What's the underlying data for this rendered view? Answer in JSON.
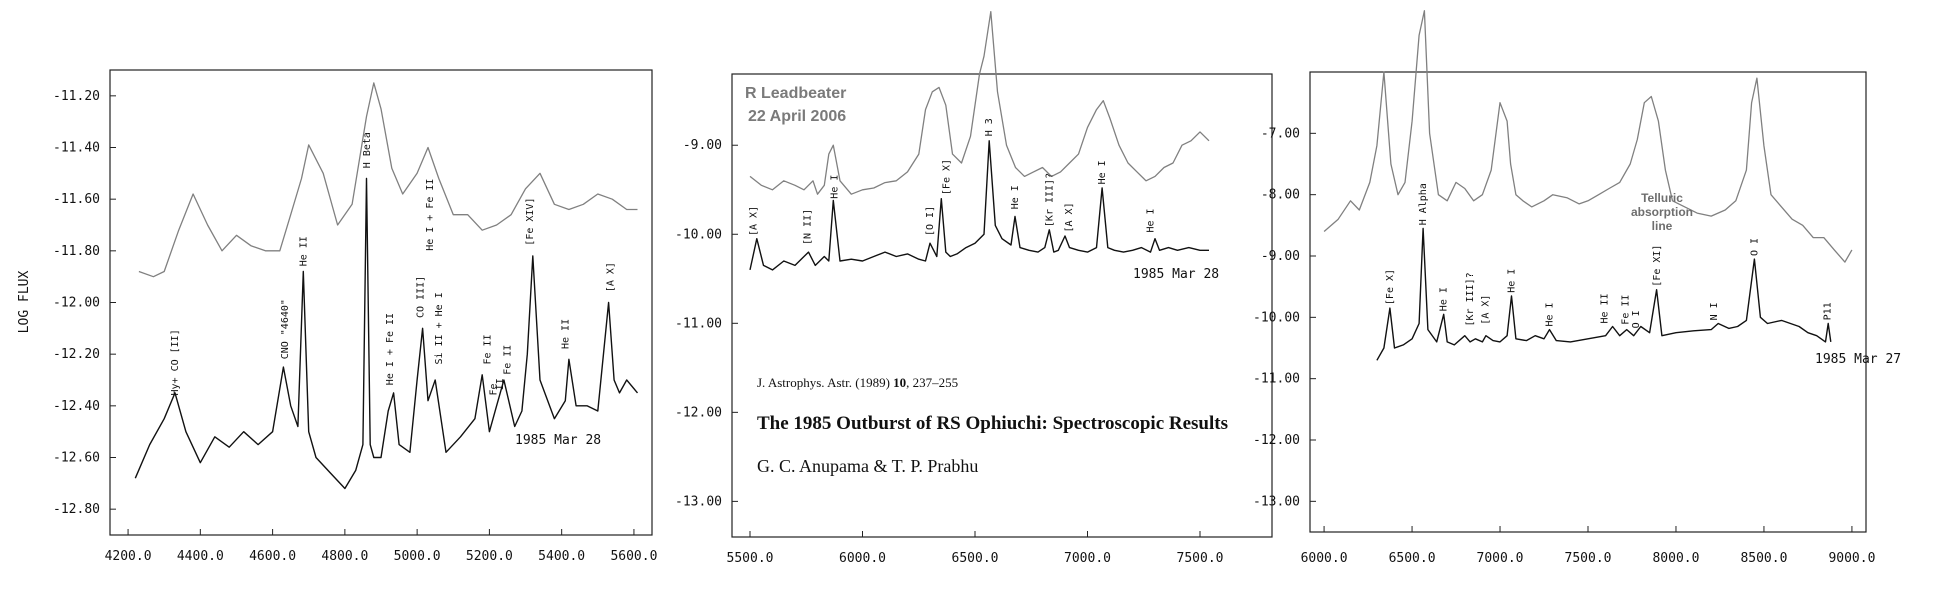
{
  "credit": {
    "author": "R Leadbeater",
    "date": "22 April 2006"
  },
  "citation": {
    "journal": "J. Astrophys. Astr. (1989) ",
    "volume": "10",
    "pages": ", 237–255"
  },
  "paper_title": "The 1985 Outburst of RS Ophiuchi: Spectroscopic Results",
  "paper_authors": "G. C. Anupama & T. P. Prabhu",
  "telluric_label": [
    "Telluric",
    "absorption",
    "line"
  ],
  "colors": {
    "old_spectrum": "#111111",
    "new_spectrum": "#808080",
    "frame": "#222222"
  },
  "chart_data": [
    {
      "type": "line",
      "panel": "left",
      "xlabel": "",
      "ylabel": "LOG FLUX",
      "xlim": [
        4150,
        5650
      ],
      "ylim": [
        -12.9,
        -11.1
      ],
      "x_ticks": [
        "4200.0",
        "4400.0",
        "4600.0",
        "4800.0",
        "5000.0",
        "5200.0",
        "5400.0",
        "5600.0"
      ],
      "x_tick_values": [
        4200,
        4400,
        4600,
        4800,
        5000,
        5200,
        5400,
        5600
      ],
      "y_ticks": [
        "-11.20",
        "-11.40",
        "-11.60",
        "-11.80",
        "-12.00",
        "-12.20",
        "-12.40",
        "-12.60",
        "-12.80"
      ],
      "y_tick_values": [
        -11.2,
        -11.4,
        -11.6,
        -11.8,
        -12.0,
        -12.2,
        -12.4,
        -12.6,
        -12.8
      ],
      "date_label": "1985 Mar 28",
      "series": [
        {
          "role": "old_spectrum",
          "x": [
            4220,
            4260,
            4300,
            4330,
            4360,
            4400,
            4440,
            4480,
            4520,
            4560,
            4600,
            4630,
            4650,
            4670,
            4685,
            4700,
            4720,
            4760,
            4800,
            4830,
            4850,
            4860,
            4870,
            4880,
            4900,
            4920,
            4935,
            4950,
            4980,
            5000,
            5015,
            5030,
            5050,
            5080,
            5120,
            5160,
            5180,
            5200,
            5220,
            5240,
            5270,
            5290,
            5305,
            5320,
            5340,
            5380,
            5410,
            5420,
            5440,
            5470,
            5500,
            5530,
            5545,
            5560,
            5580,
            5610
          ],
          "y": [
            -12.68,
            -12.55,
            -12.45,
            -12.35,
            -12.5,
            -12.62,
            -12.52,
            -12.56,
            -12.5,
            -12.55,
            -12.5,
            -12.25,
            -12.4,
            -12.48,
            -11.88,
            -12.5,
            -12.6,
            -12.66,
            -12.72,
            -12.65,
            -12.55,
            -11.52,
            -12.55,
            -12.6,
            -12.6,
            -12.42,
            -12.35,
            -12.55,
            -12.58,
            -12.3,
            -12.1,
            -12.38,
            -12.3,
            -12.58,
            -12.52,
            -12.45,
            -12.28,
            -12.5,
            -12.4,
            -12.3,
            -12.48,
            -12.42,
            -12.2,
            -11.82,
            -12.3,
            -12.45,
            -12.38,
            -12.22,
            -12.4,
            -12.4,
            -12.42,
            -12.0,
            -12.3,
            -12.35,
            -12.3,
            -12.35
          ]
        },
        {
          "role": "new_spectrum",
          "x": [
            4230,
            4270,
            4300,
            4340,
            4380,
            4420,
            4460,
            4500,
            4540,
            4580,
            4620,
            4650,
            4680,
            4700,
            4740,
            4780,
            4820,
            4860,
            4880,
            4900,
            4930,
            4960,
            5000,
            5030,
            5060,
            5100,
            5140,
            5180,
            5220,
            5260,
            5300,
            5340,
            5380,
            5420,
            5460,
            5500,
            5540,
            5580,
            5610
          ],
          "y": [
            -11.88,
            -11.9,
            -11.88,
            -11.72,
            -11.58,
            -11.7,
            -11.8,
            -11.74,
            -11.78,
            -11.8,
            -11.8,
            -11.66,
            -11.52,
            -11.39,
            -11.5,
            -11.7,
            -11.62,
            -11.28,
            -11.15,
            -11.25,
            -11.48,
            -11.58,
            -11.5,
            -11.4,
            -11.52,
            -11.66,
            -11.66,
            -11.72,
            -11.7,
            -11.66,
            -11.56,
            -11.5,
            -11.62,
            -11.64,
            -11.62,
            -11.58,
            -11.6,
            -11.64,
            -11.64
          ]
        }
      ],
      "line_labels": [
        {
          "text": "Hy+ CO [II]",
          "x": 4330,
          "y": -12.36
        },
        {
          "text": "CNO \"4640\"",
          "x": 4635,
          "y": -12.22
        },
        {
          "text": "He II",
          "x": 4686,
          "y": -11.86
        },
        {
          "text": "H Beta",
          "x": 4861,
          "y": -11.48
        },
        {
          "text": "He I + Fe II",
          "x": 4925,
          "y": -12.32
        },
        {
          "text": "CO III]",
          "x": 5010,
          "y": -12.06
        },
        {
          "text": "He I + Fe II",
          "x": 5035,
          "y": -11.8
        },
        {
          "text": "Si II + He I",
          "x": 5060,
          "y": -12.24
        },
        {
          "text": "Fe II",
          "x": 5195,
          "y": -12.24
        },
        {
          "text": "Fe",
          "x": 5212,
          "y": -12.36
        },
        {
          "text": "II",
          "x": 5230,
          "y": -12.34
        },
        {
          "text": "Fe II",
          "x": 5250,
          "y": -12.28
        },
        {
          "text": "[Fe XIV]",
          "x": 5313,
          "y": -11.78
        },
        {
          "text": "He II",
          "x": 5411,
          "y": -12.18
        },
        {
          "text": "[A X]",
          "x": 5535,
          "y": -11.96
        }
      ]
    },
    {
      "type": "line",
      "panel": "middle",
      "xlabel": "",
      "ylabel": "",
      "xlim": [
        5420,
        7820
      ],
      "ylim": [
        -13.4,
        -8.2
      ],
      "x_ticks": [
        "5500.0",
        "6000.0",
        "6500.0",
        "7000.0",
        "7500.0"
      ],
      "x_tick_values": [
        5500,
        6000,
        6500,
        7000,
        7500
      ],
      "y_ticks": [
        "-9.00",
        "-10.00",
        "-11.00",
        "-12.00",
        "-13.00"
      ],
      "y_tick_values": [
        -9,
        -10,
        -11,
        -12,
        -13
      ],
      "date_label": "1985 Mar 28",
      "series": [
        {
          "role": "old_spectrum",
          "x": [
            5500,
            5530,
            5560,
            5600,
            5650,
            5700,
            5740,
            5760,
            5790,
            5830,
            5850,
            5870,
            5900,
            5950,
            6000,
            6050,
            6100,
            6150,
            6200,
            6250,
            6280,
            6300,
            6330,
            6350,
            6370,
            6390,
            6420,
            6460,
            6500,
            6540,
            6563,
            6590,
            6620,
            6660,
            6678,
            6700,
            6740,
            6780,
            6810,
            6830,
            6850,
            6870,
            6900,
            6920,
            6960,
            7000,
            7040,
            7065,
            7090,
            7120,
            7160,
            7200,
            7240,
            7280,
            7300,
            7320,
            7360,
            7400,
            7450,
            7500,
            7540
          ],
          "y": [
            -10.4,
            -10.05,
            -10.35,
            -10.4,
            -10.3,
            -10.35,
            -10.25,
            -10.2,
            -10.35,
            -10.25,
            -10.3,
            -9.62,
            -10.3,
            -10.28,
            -10.3,
            -10.25,
            -10.2,
            -10.25,
            -10.22,
            -10.28,
            -10.3,
            -10.1,
            -10.25,
            -9.6,
            -10.2,
            -10.25,
            -10.22,
            -10.15,
            -10.1,
            -10.0,
            -8.95,
            -9.9,
            -10.05,
            -10.12,
            -9.8,
            -10.15,
            -10.18,
            -10.2,
            -10.15,
            -9.95,
            -10.2,
            -10.18,
            -10.02,
            -10.15,
            -10.18,
            -10.2,
            -10.15,
            -9.48,
            -10.15,
            -10.18,
            -10.2,
            -10.18,
            -10.15,
            -10.2,
            -10.05,
            -10.18,
            -10.15,
            -10.18,
            -10.15,
            -10.18,
            -10.18
          ]
        },
        {
          "role": "new_spectrum",
          "x": [
            5500,
            5550,
            5600,
            5650,
            5700,
            5740,
            5780,
            5800,
            5830,
            5850,
            5870,
            5900,
            5950,
            6000,
            6050,
            6100,
            6150,
            6200,
            6250,
            6280,
            6310,
            6340,
            6370,
            6400,
            6440,
            6480,
            6520,
            6540,
            6570,
            6600,
            6640,
            6680,
            6720,
            6760,
            6800,
            6840,
            6880,
            6920,
            6960,
            7000,
            7040,
            7070,
            7100,
            7140,
            7180,
            7220,
            7260,
            7300,
            7340,
            7380,
            7420,
            7460,
            7500,
            7540
          ],
          "y": [
            -9.35,
            -9.45,
            -9.5,
            -9.4,
            -9.45,
            -9.5,
            -9.4,
            -9.55,
            -9.45,
            -9.1,
            -9.0,
            -9.4,
            -9.55,
            -9.5,
            -9.48,
            -9.42,
            -9.4,
            -9.3,
            -9.1,
            -8.6,
            -8.4,
            -8.35,
            -8.55,
            -9.1,
            -9.2,
            -8.9,
            -8.2,
            -8.0,
            -7.5,
            -8.4,
            -9.0,
            -9.25,
            -9.35,
            -9.3,
            -9.25,
            -9.35,
            -9.3,
            -9.2,
            -9.1,
            -8.8,
            -8.6,
            -8.5,
            -8.7,
            -9.0,
            -9.2,
            -9.3,
            -9.4,
            -9.35,
            -9.25,
            -9.2,
            -9.0,
            -8.95,
            -8.85,
            -8.95
          ]
        }
      ],
      "line_labels": [
        {
          "text": "[A X]",
          "x": 5515,
          "y": -10.02
        },
        {
          "text": "[N II]",
          "x": 5755,
          "y": -10.12
        },
        {
          "text": "He I",
          "x": 5876,
          "y": -9.6
        },
        {
          "text": "[O I]",
          "x": 6300,
          "y": -10.02
        },
        {
          "text": "[Fe X]",
          "x": 6374,
          "y": -9.56
        },
        {
          "text": "H 3",
          "x": 6563,
          "y": -8.9
        },
        {
          "text": "He I",
          "x": 6678,
          "y": -9.72
        },
        {
          "text": "[Kr III]?",
          "x": 6830,
          "y": -9.92
        },
        {
          "text": "[A X]",
          "x": 6918,
          "y": -9.98
        },
        {
          "text": "He I",
          "x": 7065,
          "y": -9.44
        },
        {
          "text": "He I",
          "x": 7281,
          "y": -9.98
        }
      ]
    },
    {
      "type": "line",
      "panel": "right",
      "xlabel": "",
      "ylabel": "",
      "xlim": [
        5920,
        9080
      ],
      "ylim": [
        -13.5,
        -6.0
      ],
      "x_ticks": [
        "6000.0",
        "6500.0",
        "7000.0",
        "7500.0",
        "8000.0",
        "8500.0",
        "9000.0"
      ],
      "x_tick_values": [
        6000,
        6500,
        7000,
        7500,
        8000,
        8500,
        9000
      ],
      "y_ticks": [
        "-7.00",
        "-8.00",
        "-9.00",
        "-10.00",
        "-11.00",
        "-12.00",
        "-13.00"
      ],
      "y_tick_values": [
        -7,
        -8,
        -9,
        -10,
        -11,
        -12,
        -13
      ],
      "date_label": "1985 Mar 27",
      "series": [
        {
          "role": "old_spectrum",
          "x": [
            6300,
            6340,
            6374,
            6400,
            6450,
            6500,
            6540,
            6563,
            6590,
            6640,
            6680,
            6700,
            6740,
            6800,
            6830,
            6860,
            6900,
            6920,
            6960,
            7000,
            7040,
            7065,
            7090,
            7150,
            7200,
            7250,
            7281,
            7320,
            7400,
            7500,
            7600,
            7640,
            7680,
            7720,
            7760,
            7800,
            7850,
            7890,
            7920,
            8000,
            8100,
            8200,
            8240,
            8300,
            8350,
            8400,
            8446,
            8480,
            8520,
            8600,
            8700,
            8750,
            8800,
            8850,
            8865,
            8880
          ],
          "y": [
            -10.7,
            -10.5,
            -9.85,
            -10.5,
            -10.45,
            -10.35,
            -10.1,
            -8.55,
            -10.2,
            -10.4,
            -9.95,
            -10.4,
            -10.45,
            -10.3,
            -10.4,
            -10.35,
            -10.4,
            -10.3,
            -10.38,
            -10.4,
            -10.3,
            -9.65,
            -10.35,
            -10.38,
            -10.3,
            -10.35,
            -10.2,
            -10.38,
            -10.4,
            -10.35,
            -10.3,
            -10.15,
            -10.3,
            -10.2,
            -10.3,
            -10.15,
            -10.25,
            -9.55,
            -10.3,
            -10.25,
            -10.22,
            -10.2,
            -10.1,
            -10.18,
            -10.15,
            -10.05,
            -9.05,
            -10.0,
            -10.1,
            -10.05,
            -10.15,
            -10.25,
            -10.3,
            -10.4,
            -10.1,
            -10.4
          ]
        },
        {
          "role": "new_spectrum",
          "x": [
            6000,
            6080,
            6150,
            6200,
            6260,
            6300,
            6340,
            6380,
            6420,
            6460,
            6500,
            6540,
            6570,
            6600,
            6650,
            6700,
            6750,
            6800,
            6850,
            6900,
            6950,
            7000,
            7040,
            7060,
            7090,
            7130,
            7180,
            7250,
            7300,
            7380,
            7450,
            7500,
            7560,
            7620,
            7680,
            7740,
            7780,
            7820,
            7860,
            7900,
            7940,
            7980,
            8050,
            8120,
            8200,
            8280,
            8340,
            8400,
            8430,
            8460,
            8500,
            8540,
            8600,
            8660,
            8720,
            8780,
            8840,
            8900,
            8960,
            9000
          ],
          "y": [
            -8.6,
            -8.4,
            -8.1,
            -8.25,
            -7.8,
            -7.2,
            -6.0,
            -7.5,
            -8.0,
            -7.8,
            -6.8,
            -5.4,
            -5.0,
            -7.0,
            -8.0,
            -8.1,
            -7.8,
            -7.9,
            -8.1,
            -8.0,
            -7.6,
            -6.5,
            -6.8,
            -7.5,
            -8.0,
            -8.1,
            -8.2,
            -8.1,
            -8.0,
            -8.05,
            -8.15,
            -8.1,
            -8.0,
            -7.9,
            -7.8,
            -7.5,
            -7.1,
            -6.5,
            -6.4,
            -6.8,
            -7.6,
            -8.1,
            -8.2,
            -8.3,
            -8.35,
            -8.25,
            -8.1,
            -7.6,
            -6.5,
            -6.1,
            -7.2,
            -8.0,
            -8.2,
            -8.4,
            -8.5,
            -8.7,
            -8.7,
            -8.9,
            -9.1,
            -8.9
          ]
        }
      ],
      "line_labels": [
        {
          "text": "[Fe X]",
          "x": 6374,
          "y": -9.8
        },
        {
          "text": "H Alpha",
          "x": 6563,
          "y": -8.5
        },
        {
          "text": "He I",
          "x": 6678,
          "y": -9.9
        },
        {
          "text": "[Kr III]?",
          "x": 6830,
          "y": -10.15
        },
        {
          "text": "[A X]",
          "x": 6918,
          "y": -10.12
        },
        {
          "text": "He I",
          "x": 7065,
          "y": -9.6
        },
        {
          "text": "He I",
          "x": 7281,
          "y": -10.15
        },
        {
          "text": "He II",
          "x": 7593,
          "y": -10.1
        },
        {
          "text": "Fe II",
          "x": 7712,
          "y": -10.12
        },
        {
          "text": "O I",
          "x": 7772,
          "y": -10.18
        },
        {
          "text": "[Fe XI]",
          "x": 7892,
          "y": -9.5
        },
        {
          "text": "N I",
          "x": 8216,
          "y": -10.05
        },
        {
          "text": "O I",
          "x": 8446,
          "y": -9.0
        },
        {
          "text": "P11",
          "x": 8862,
          "y": -10.05
        }
      ]
    }
  ]
}
